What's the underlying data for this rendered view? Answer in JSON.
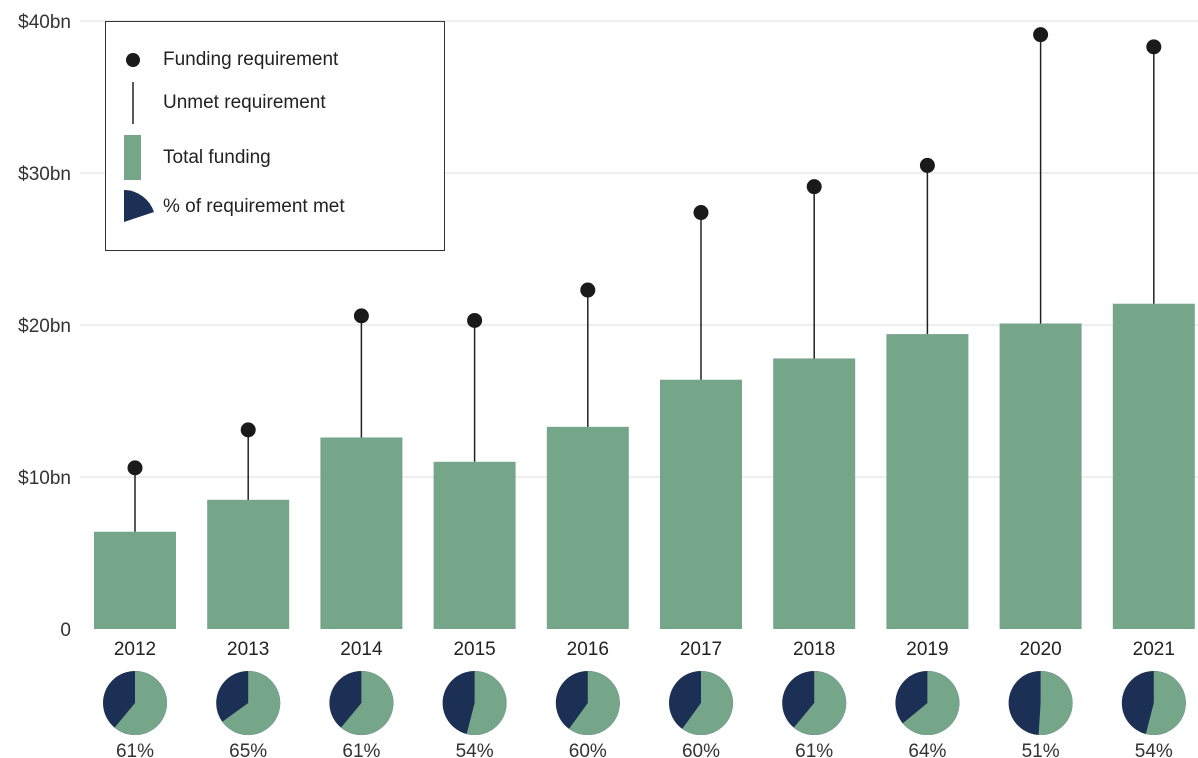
{
  "colors": {
    "funding_bar": "#75a68a",
    "requirement_dot": "#1a1a1a",
    "unmet_line": "#222222",
    "met_slice": "#75a68a",
    "unmet_slice": "#1c3055",
    "gridline": "#dddddd"
  },
  "legend": {
    "items": [
      {
        "label": "Funding requirement",
        "icon": "dot-icon"
      },
      {
        "label": "Unmet requirement",
        "icon": "line-icon"
      },
      {
        "label": "Total funding",
        "icon": "bar-swatch-icon"
      },
      {
        "label": "% of requirement met",
        "icon": "pie-wedge-icon"
      }
    ]
  },
  "chart_data": {
    "type": "bar",
    "categories": [
      "2012",
      "2013",
      "2014",
      "2015",
      "2016",
      "2017",
      "2018",
      "2019",
      "2020",
      "2021"
    ],
    "series": [
      {
        "name": "Total funding",
        "values": [
          6.4,
          8.5,
          12.6,
          11.0,
          13.3,
          16.4,
          17.8,
          19.4,
          20.1,
          21.4
        ]
      },
      {
        "name": "Funding requirement",
        "values": [
          10.6,
          13.1,
          20.6,
          20.3,
          22.3,
          27.4,
          29.1,
          30.5,
          39.1,
          38.3
        ]
      }
    ],
    "percent_met": [
      61,
      65,
      61,
      54,
      60,
      60,
      61,
      64,
      51,
      54
    ],
    "percent_labels": [
      "61%",
      "65%",
      "61%",
      "54%",
      "60%",
      "60%",
      "61%",
      "64%",
      "51%",
      "54%"
    ],
    "ylim": [
      0,
      40
    ],
    "yticks": [
      0,
      10,
      20,
      30,
      40
    ],
    "ytick_labels": [
      "0",
      "$10bn",
      "$20bn",
      "$30bn",
      "$40bn"
    ],
    "grid": true,
    "legend_position": "top-left"
  }
}
